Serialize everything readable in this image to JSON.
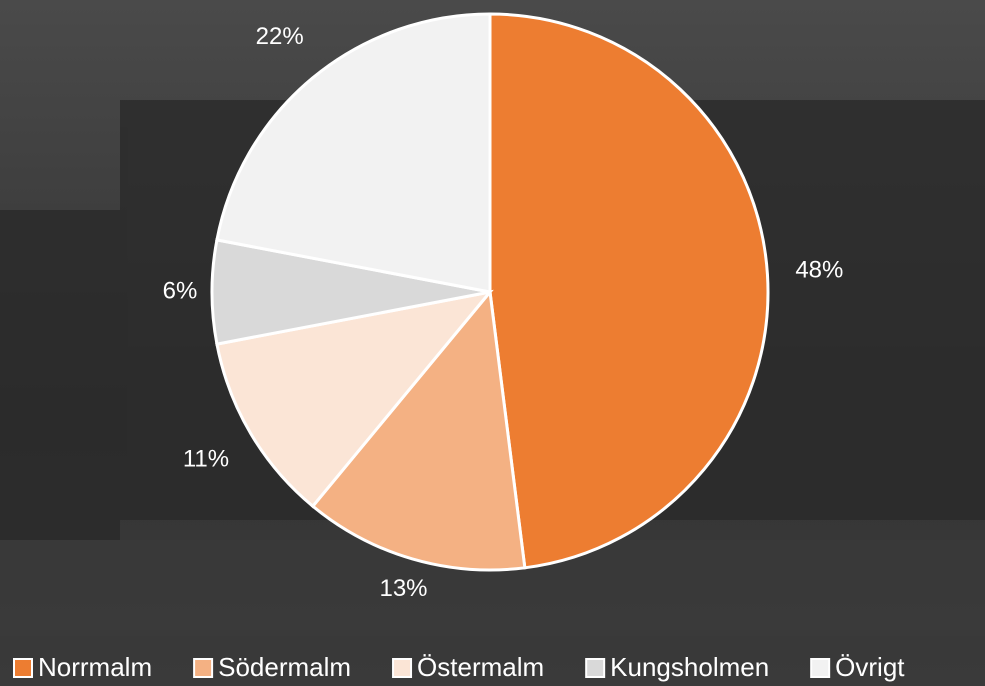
{
  "chart_data": {
    "type": "pie",
    "categories": [
      "Norrmalm",
      "Södermalm",
      "Östermalm",
      "Kungsholmen",
      "Övrigt"
    ],
    "values": [
      48,
      13,
      11,
      6,
      22
    ],
    "value_labels": [
      "48%",
      "13%",
      "11%",
      "6%",
      "22%"
    ],
    "colors": [
      "#ED7D31",
      "#F4B183",
      "#FBE5D6",
      "#D9D9D9",
      "#F2F2F2"
    ],
    "legend": "bottom"
  }
}
